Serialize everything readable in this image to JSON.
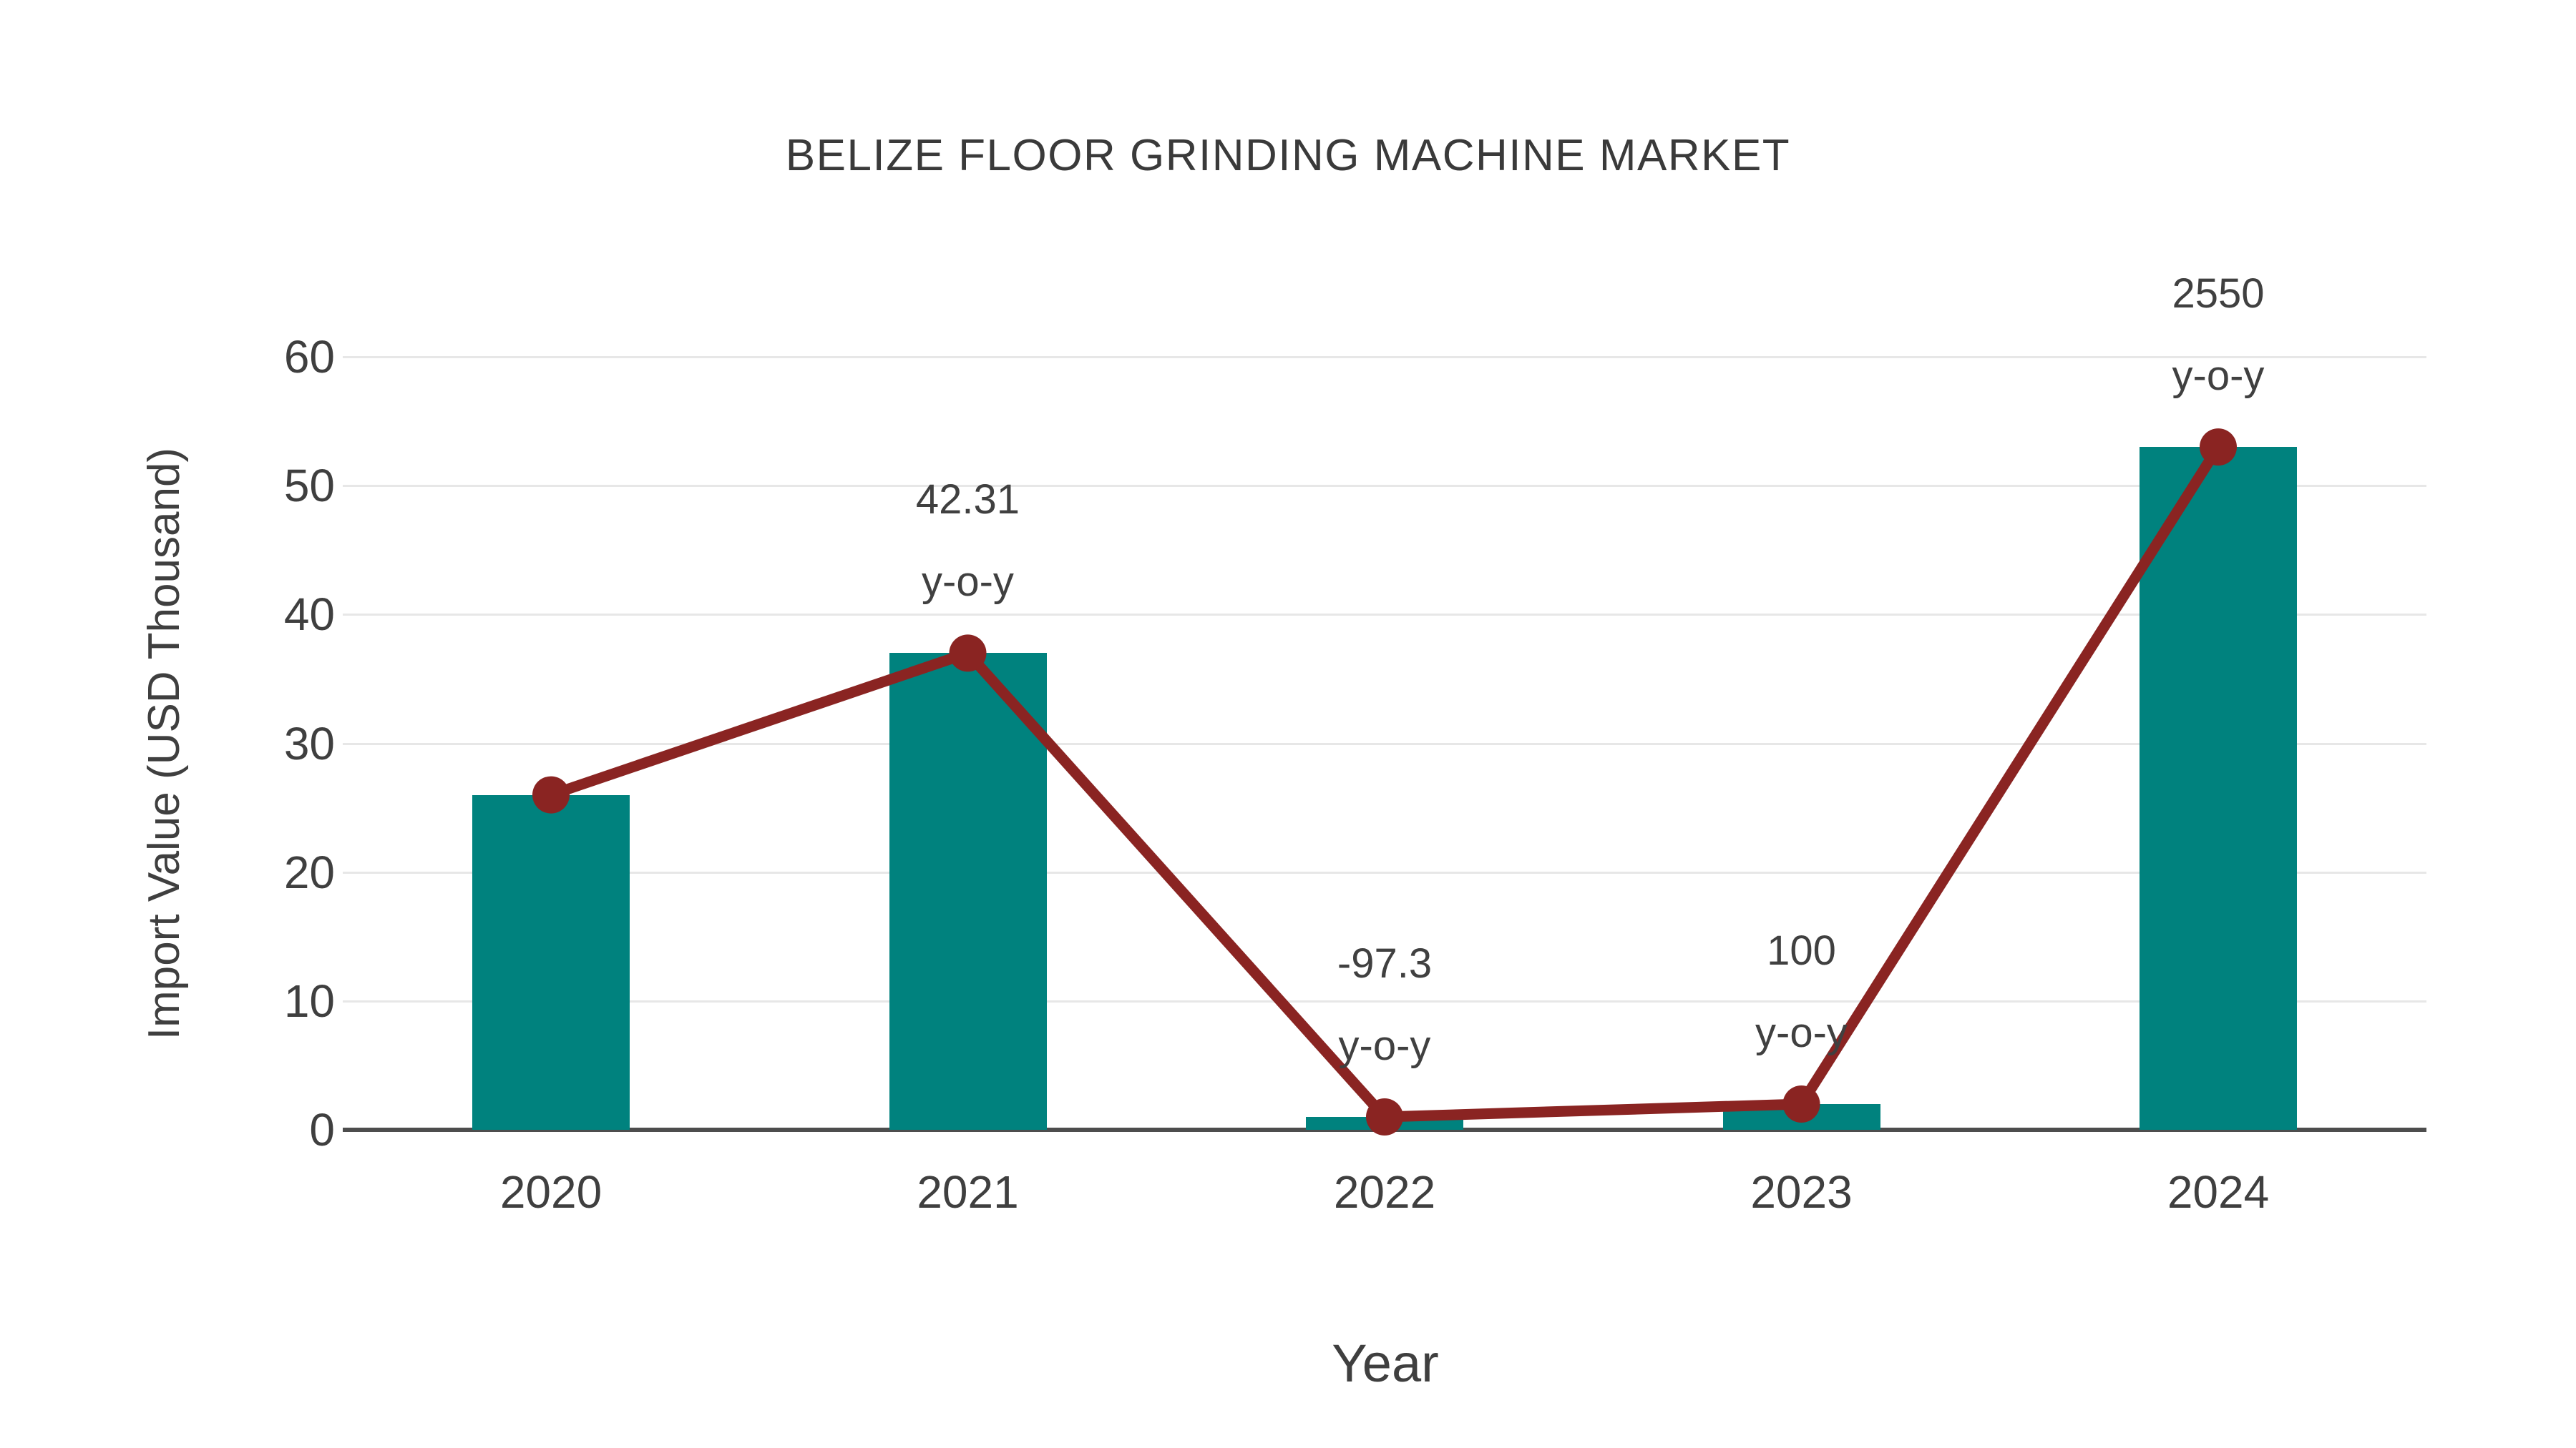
{
  "chart_data": {
    "type": "bar+line",
    "title": "BELIZE FLOOR GRINDING MACHINE MARKET",
    "xlabel": "Year",
    "ylabel": "Import Value (USD Thousand)",
    "categories": [
      "2020",
      "2021",
      "2022",
      "2023",
      "2024"
    ],
    "series": [
      {
        "name": "import-value-bars",
        "type": "bar",
        "values": [
          26,
          37,
          1,
          2,
          53
        ]
      },
      {
        "name": "import-value-trend-line",
        "type": "line",
        "values": [
          26,
          37,
          1,
          2,
          53
        ]
      }
    ],
    "annotations": [
      {
        "category": "2021",
        "line1": "42.31",
        "line2": "y-o-y"
      },
      {
        "category": "2022",
        "line1": "-97.3",
        "line2": "y-o-y"
      },
      {
        "category": "2023",
        "line1": "100",
        "line2": "y-o-y"
      },
      {
        "category": "2024",
        "line1": "2550",
        "line2": "y-o-y"
      }
    ],
    "y_ticks": [
      0,
      10,
      20,
      30,
      40,
      50,
      60
    ],
    "ylim": [
      0,
      60
    ],
    "grid": "horizontal",
    "legend": "none",
    "colors": {
      "bar": "#00827E",
      "line": "#8A2422",
      "marker": "#8A2422",
      "text": "#3F3F3F",
      "gridline": "#E7E7E7",
      "axis_line": "#4D4D4D",
      "background": "#FFFFFF"
    }
  }
}
